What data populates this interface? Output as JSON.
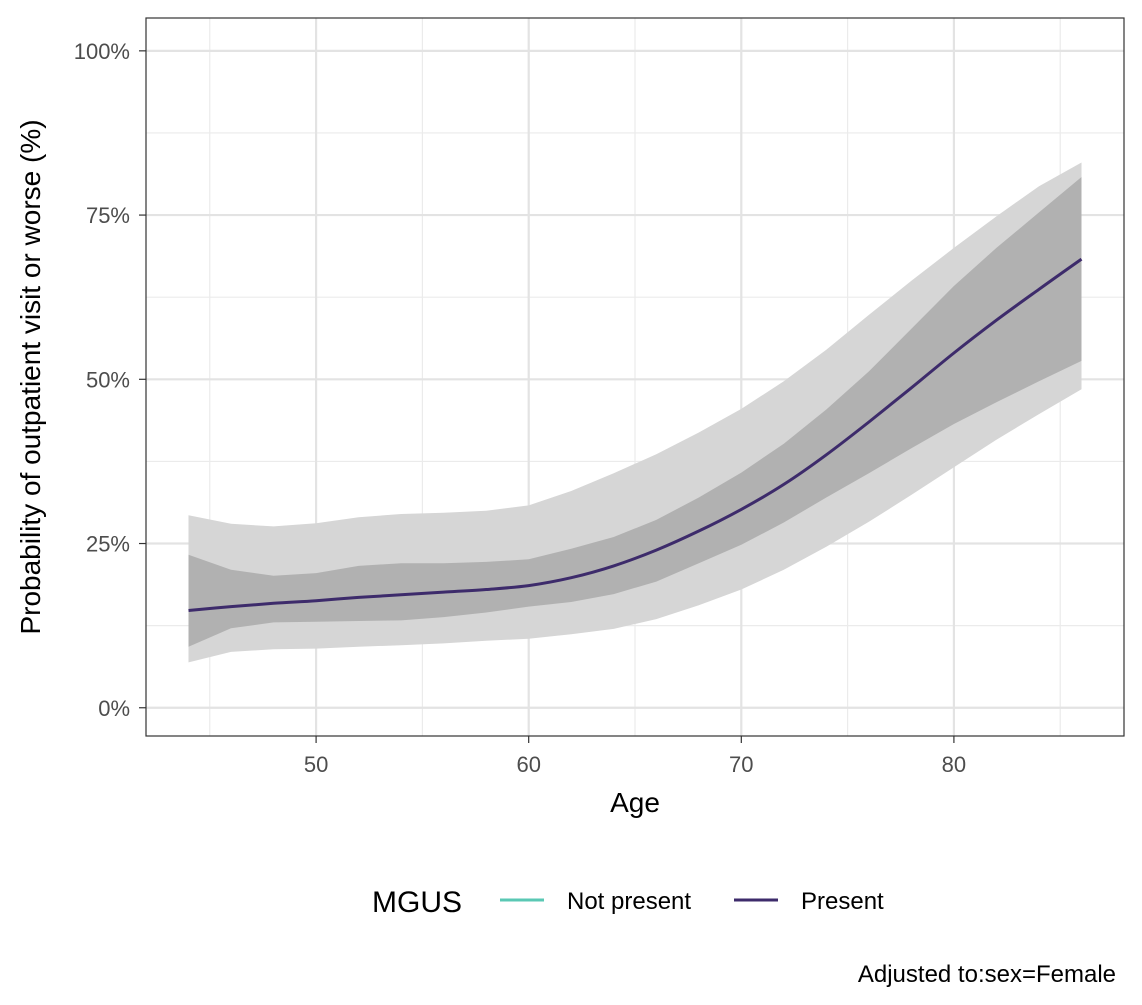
{
  "chart_data": {
    "type": "line",
    "xlabel": "Age",
    "ylabel": "Probability of outpatient visit or worse (%)",
    "xlim": [
      42,
      88
    ],
    "ylim": [
      -4.3,
      105
    ],
    "x_ticks": [
      50,
      60,
      70,
      80
    ],
    "x_tick_labels": [
      "50",
      "60",
      "70",
      "80"
    ],
    "y_ticks": [
      0,
      25,
      50,
      75,
      100
    ],
    "y_tick_labels": [
      "0%",
      "25%",
      "50%",
      "75%",
      "100%"
    ],
    "grid": true,
    "legend": {
      "title": "MGUS",
      "position": "bottom",
      "entries": [
        "Not present",
        "Present"
      ]
    },
    "caption": "Adjusted to:sex=Female",
    "colors": {
      "not_present": "#5ac8b4",
      "present": "#3d2b6b",
      "band_outer": "#d6d6d6",
      "band_inner": "#aaaaaa"
    },
    "series": [
      {
        "name": "Present",
        "x": [
          44,
          46,
          48,
          50,
          52,
          54,
          56,
          58,
          60,
          62,
          64,
          66,
          68,
          70,
          72,
          74,
          76,
          78,
          80,
          82,
          84,
          86
        ],
        "y": [
          14.8,
          15.4,
          15.9,
          16.3,
          16.8,
          17.2,
          17.6,
          18.0,
          18.6,
          19.8,
          21.6,
          24.0,
          26.9,
          30.2,
          34.0,
          38.5,
          43.5,
          48.7,
          54.0,
          59.0,
          63.7,
          68.3
        ],
        "band_inner_lower": [
          9.3,
          12.1,
          13.0,
          13.1,
          13.2,
          13.3,
          13.8,
          14.5,
          15.4,
          16.1,
          17.3,
          19.2,
          22.0,
          24.8,
          28.2,
          32.0,
          35.7,
          39.5,
          43.2,
          46.5,
          49.7,
          52.8
        ],
        "band_inner_upper": [
          23.3,
          21.0,
          20.1,
          20.5,
          21.6,
          22.0,
          22.0,
          22.2,
          22.6,
          24.2,
          26.0,
          28.6,
          32.0,
          35.8,
          40.2,
          45.4,
          51.2,
          57.7,
          64.2,
          70.0,
          75.4,
          80.8
        ],
        "band_outer_lower": [
          6.9,
          8.5,
          8.9,
          9.0,
          9.3,
          9.5,
          9.8,
          10.2,
          10.5,
          11.2,
          12.0,
          13.5,
          15.6,
          18.0,
          21.0,
          24.5,
          28.3,
          32.4,
          36.6,
          40.8,
          44.7,
          48.5
        ],
        "band_outer_upper": [
          29.3,
          28.0,
          27.6,
          28.1,
          29.0,
          29.5,
          29.7,
          30.0,
          30.8,
          33.0,
          35.7,
          38.6,
          41.9,
          45.5,
          49.7,
          54.5,
          59.8,
          65.0,
          70.0,
          74.8,
          79.4,
          83.0
        ]
      }
    ]
  }
}
